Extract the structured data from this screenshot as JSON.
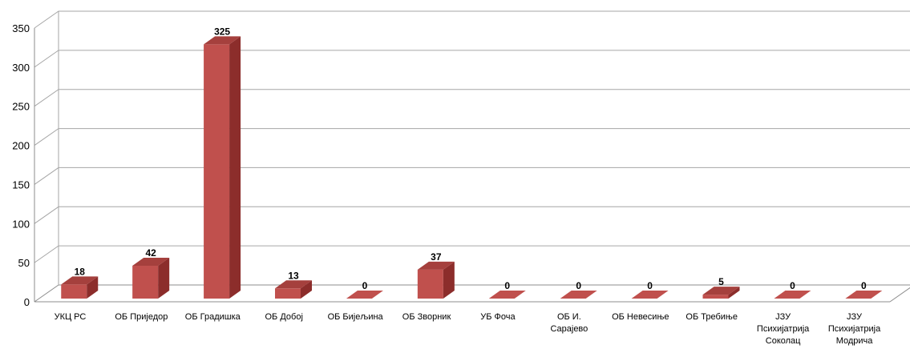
{
  "chart_data": {
    "type": "bar",
    "title": "",
    "xlabel": "",
    "ylabel": "",
    "ylim": [
      0,
      350
    ],
    "y_ticks": [
      0,
      50,
      100,
      150,
      200,
      250,
      300,
      350
    ],
    "grid": true,
    "legend": "none",
    "style": "3d-column",
    "categories": [
      [
        "УКЦ РС"
      ],
      [
        "ОБ Приједор"
      ],
      [
        "ОБ Градишка"
      ],
      [
        "ОБ Добој"
      ],
      [
        "ОБ Бијељина"
      ],
      [
        "ОБ Зворник"
      ],
      [
        "УБ Фоча"
      ],
      [
        "ОБ И.",
        "Сарајево"
      ],
      [
        "ОБ Невесиње"
      ],
      [
        "ОБ Требиње"
      ],
      [
        "ЈЗУ",
        "Психијатрија",
        "Соколац"
      ],
      [
        "ЈЗУ",
        "Психијатрија",
        "Модрича"
      ]
    ],
    "values": [
      18,
      42,
      325,
      13,
      0,
      37,
      0,
      0,
      0,
      5,
      0,
      0
    ],
    "colors": {
      "front": "#c0504d",
      "side": "#8c2d2b",
      "top": "#a5403d",
      "grid": "#a6a6a6",
      "axis": "#8c8c8c"
    }
  }
}
